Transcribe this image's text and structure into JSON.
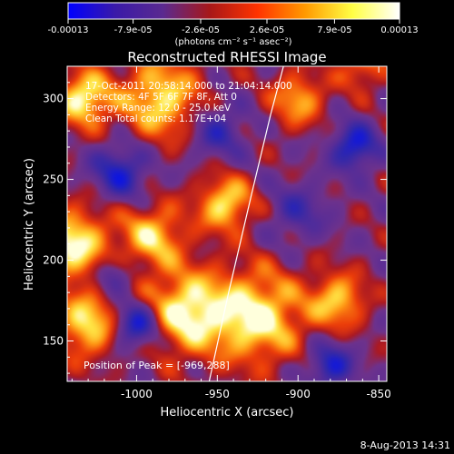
{
  "colorbar": {
    "tick_labels": [
      "-0.00013",
      "-7.9e-05",
      "-2.6e-05",
      "2.6e-05",
      "7.9e-05",
      "0.00013"
    ],
    "tick_values": [
      -0.00013,
      -7.9e-05,
      -2.6e-05,
      2.6e-05,
      7.9e-05,
      0.00013
    ],
    "range": [
      -0.00013,
      0.00013
    ],
    "unit_label": "(photons cm⁻² s⁻¹ asec⁻²)",
    "colors": [
      "#0000ff",
      "#3a1aa8",
      "#5a2a90",
      "#a81818",
      "#ff3300",
      "#ff9900",
      "#ffff44",
      "#ffffff"
    ]
  },
  "chart_data": {
    "type": "heatmap",
    "title": "Reconstructed RHESSI Image",
    "xlabel": "Heliocentric X (arcsec)",
    "ylabel": "Heliocentric Y (arcsec)",
    "xlim": [
      -1043,
      -845
    ],
    "ylim": [
      125,
      320
    ],
    "x_ticks": [
      -1000,
      -950,
      -900,
      -850
    ],
    "y_ticks": [
      150,
      200,
      250,
      300
    ],
    "x_tick_labels": [
      "-1000",
      "-950",
      "-900",
      "-850"
    ],
    "y_tick_labels": [
      "150",
      "200",
      "250",
      "300"
    ],
    "sources": [
      {
        "x": -1033,
        "y": 300,
        "sigma": 12,
        "amp": 1.0
      },
      {
        "x": -1040,
        "y": 210,
        "sigma": 16,
        "amp": 1.0
      },
      {
        "x": -1030,
        "y": 160,
        "sigma": 14,
        "amp": 0.9
      },
      {
        "x": -985,
        "y": 300,
        "sigma": 18,
        "amp": 0.9
      },
      {
        "x": -945,
        "y": 235,
        "sigma": 12,
        "amp": 0.9
      },
      {
        "x": -990,
        "y": 215,
        "sigma": 14,
        "amp": 0.8
      },
      {
        "x": -969,
        "y": 168,
        "sigma": 18,
        "amp": 1.0
      },
      {
        "x": -925,
        "y": 165,
        "sigma": 20,
        "amp": 1.0
      },
      {
        "x": -875,
        "y": 175,
        "sigma": 12,
        "amp": 0.8
      },
      {
        "x": -900,
        "y": 300,
        "sigma": 12,
        "amp": 0.7
      },
      {
        "x": -860,
        "y": 320,
        "sigma": 10,
        "amp": 0.6
      },
      {
        "x": -1010,
        "y": 255,
        "sigma": 12,
        "amp": -0.8
      },
      {
        "x": -1000,
        "y": 160,
        "sigma": 10,
        "amp": -1.0
      },
      {
        "x": -865,
        "y": 270,
        "sigma": 10,
        "amp": -0.9
      },
      {
        "x": -950,
        "y": 280,
        "sigma": 12,
        "amp": -0.6
      },
      {
        "x": -880,
        "y": 135,
        "sigma": 10,
        "amp": -0.8
      },
      {
        "x": -1015,
        "y": 190,
        "sigma": 8,
        "amp": -0.6
      },
      {
        "x": -900,
        "y": 230,
        "sigma": 12,
        "amp": -0.5
      }
    ],
    "limb": [
      [
        -955,
        125
      ],
      [
        -943,
        180
      ],
      [
        -929,
        240
      ],
      [
        -917,
        290
      ],
      [
        -909,
        320
      ]
    ],
    "info_lines": [
      "17-Oct-2011 20:58:14.000 to 21:04:14.000",
      "Detectors: 4F 5F 6F 7F 8F, Att 0",
      "Energy Range: 12.0 - 25.0 keV",
      "Clean     Total counts: 1.17E+04"
    ],
    "peak_label": "Position of Peak = [-969,288]"
  },
  "footer": {
    "timestamp": "8-Aug-2013 14:31"
  }
}
